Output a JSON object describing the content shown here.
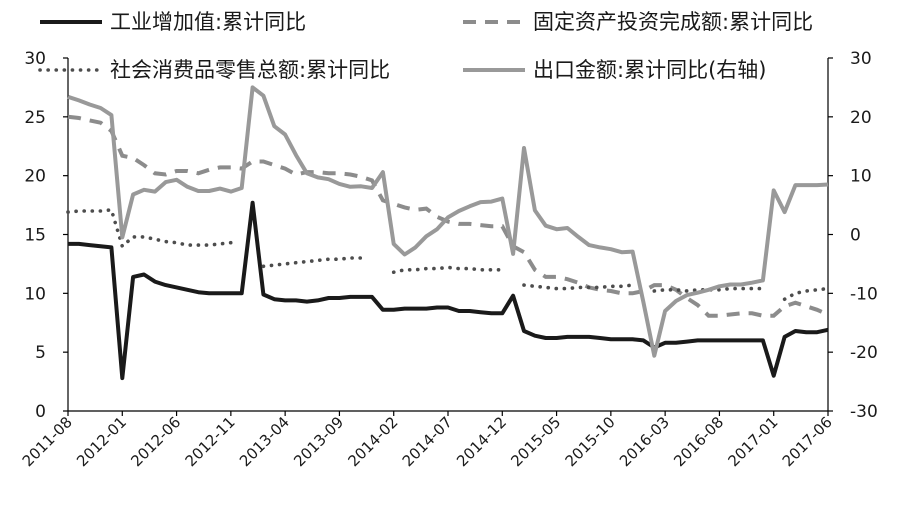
{
  "chart_data": {
    "type": "line",
    "title": "",
    "xlabel": "",
    "ylabel": "",
    "y_left": {
      "range": [
        0,
        30
      ],
      "ticks": [
        "0",
        "5",
        "10",
        "15",
        "20",
        "25",
        "30"
      ]
    },
    "y_right": {
      "range": [
        -30,
        30
      ],
      "ticks": [
        "-30",
        "-20",
        "-10",
        "0",
        "10",
        "20",
        "30"
      ]
    },
    "x_tick_labels": [
      "2011-08",
      "2012-01",
      "2012-06",
      "2012-11",
      "2013-04",
      "2013-09",
      "2014-02",
      "2014-07",
      "2014-12",
      "2015-05",
      "2015-10",
      "2016-03",
      "2016-08",
      "2017-01",
      "2017-06"
    ],
    "x_start": "2011-08",
    "x_end": "2017-06",
    "grid": false,
    "legend_position": "top",
    "series": [
      {
        "name": "工业增加值:累计同比",
        "axis": "left",
        "color": "#1a1a1a",
        "style": "solid",
        "points": [
          [
            "2011-08",
            14.2
          ],
          [
            "2011-09",
            14.2
          ],
          [
            "2011-10",
            14.1
          ],
          [
            "2011-11",
            14.0
          ],
          [
            "2011-12",
            13.9
          ],
          [
            "2012-01",
            2.8
          ],
          [
            "2012-02",
            11.4
          ],
          [
            "2012-03",
            11.6
          ],
          [
            "2012-04",
            11.0
          ],
          [
            "2012-05",
            10.7
          ],
          [
            "2012-06",
            10.5
          ],
          [
            "2012-07",
            10.3
          ],
          [
            "2012-08",
            10.1
          ],
          [
            "2012-09",
            10.0
          ],
          [
            "2012-10",
            10.0
          ],
          [
            "2012-11",
            10.0
          ],
          [
            "2012-12",
            10.0
          ],
          [
            "2013-01",
            17.7
          ],
          [
            "2013-02",
            9.9
          ],
          [
            "2013-03",
            9.5
          ],
          [
            "2013-04",
            9.4
          ],
          [
            "2013-05",
            9.4
          ],
          [
            "2013-06",
            9.3
          ],
          [
            "2013-07",
            9.4
          ],
          [
            "2013-08",
            9.6
          ],
          [
            "2013-09",
            9.6
          ],
          [
            "2013-10",
            9.7
          ],
          [
            "2013-11",
            9.7
          ],
          [
            "2013-12",
            9.7
          ],
          [
            "2014-01",
            8.6
          ],
          [
            "2014-02",
            8.6
          ],
          [
            "2014-03",
            8.7
          ],
          [
            "2014-04",
            8.7
          ],
          [
            "2014-05",
            8.7
          ],
          [
            "2014-06",
            8.8
          ],
          [
            "2014-07",
            8.8
          ],
          [
            "2014-08",
            8.5
          ],
          [
            "2014-09",
            8.5
          ],
          [
            "2014-10",
            8.4
          ],
          [
            "2014-11",
            8.3
          ],
          [
            "2014-12",
            8.3
          ],
          [
            "2015-01",
            9.8
          ],
          [
            "2015-02",
            6.8
          ],
          [
            "2015-03",
            6.4
          ],
          [
            "2015-04",
            6.2
          ],
          [
            "2015-05",
            6.2
          ],
          [
            "2015-06",
            6.3
          ],
          [
            "2015-07",
            6.3
          ],
          [
            "2015-08",
            6.3
          ],
          [
            "2015-09",
            6.2
          ],
          [
            "2015-10",
            6.1
          ],
          [
            "2015-11",
            6.1
          ],
          [
            "2015-12",
            6.1
          ],
          [
            "2016-01",
            6.0
          ],
          [
            "2016-02",
            5.4
          ],
          [
            "2016-03",
            5.8
          ],
          [
            "2016-04",
            5.8
          ],
          [
            "2016-05",
            5.9
          ],
          [
            "2016-06",
            6.0
          ],
          [
            "2016-07",
            6.0
          ],
          [
            "2016-08",
            6.0
          ],
          [
            "2016-09",
            6.0
          ],
          [
            "2016-10",
            6.0
          ],
          [
            "2016-11",
            6.0
          ],
          [
            "2016-12",
            6.0
          ],
          [
            "2017-01",
            3.0
          ],
          [
            "2017-02",
            6.3
          ],
          [
            "2017-03",
            6.8
          ],
          [
            "2017-04",
            6.7
          ],
          [
            "2017-05",
            6.7
          ],
          [
            "2017-06",
            6.9
          ]
        ]
      },
      {
        "name": "固定资产投资完成额:累计同比",
        "axis": "left",
        "color": "#8c8c8c",
        "style": "dashed",
        "points": [
          [
            "2011-08",
            25.0
          ],
          [
            "2011-09",
            24.9
          ],
          [
            "2011-10",
            24.7
          ],
          [
            "2011-11",
            24.5
          ],
          [
            "2011-12",
            23.8
          ],
          [
            "2012-01",
            21.7
          ],
          [
            "2012-02",
            21.5
          ],
          [
            "2012-03",
            20.9
          ],
          [
            "2012-04",
            20.2
          ],
          [
            "2012-05",
            20.1
          ],
          [
            "2012-06",
            20.4
          ],
          [
            "2012-07",
            20.4
          ],
          [
            "2012-08",
            20.2
          ],
          [
            "2012-09",
            20.5
          ],
          [
            "2012-10",
            20.7
          ],
          [
            "2012-11",
            20.7
          ],
          [
            "2012-12",
            20.6
          ],
          [
            "2013-01",
            21.2
          ],
          [
            "2013-02",
            21.2
          ],
          [
            "2013-03",
            20.9
          ],
          [
            "2013-04",
            20.6
          ],
          [
            "2013-05",
            20.1
          ],
          [
            "2013-06",
            20.3
          ],
          [
            "2013-07",
            20.3
          ],
          [
            "2013-08",
            20.2
          ],
          [
            "2013-09",
            20.2
          ],
          [
            "2013-10",
            20.1
          ],
          [
            "2013-11",
            19.9
          ],
          [
            "2013-12",
            19.6
          ],
          [
            "2014-01",
            17.9
          ],
          [
            "2014-02",
            17.6
          ],
          [
            "2014-03",
            17.3
          ],
          [
            "2014-04",
            17.1
          ],
          [
            "2014-05",
            17.2
          ],
          [
            "2014-06",
            16.5
          ],
          [
            "2014-07",
            16.1
          ],
          [
            "2014-08",
            15.9
          ],
          [
            "2014-09",
            15.9
          ],
          [
            "2014-10",
            15.8
          ],
          [
            "2014-11",
            15.7
          ],
          [
            "2014-12",
            15.7
          ],
          [
            "2015-01",
            14.0
          ],
          [
            "2015-02",
            13.5
          ],
          [
            "2015-03",
            12.0
          ],
          [
            "2015-04",
            11.4
          ],
          [
            "2015-05",
            11.4
          ],
          [
            "2015-06",
            11.2
          ],
          [
            "2015-07",
            10.9
          ],
          [
            "2015-08",
            10.5
          ],
          [
            "2015-09",
            10.3
          ],
          [
            "2015-10",
            10.2
          ],
          [
            "2015-11",
            10.0
          ],
          [
            "2015-12",
            10.0
          ],
          [
            "2016-01",
            10.2
          ],
          [
            "2016-02",
            10.7
          ],
          [
            "2016-03",
            10.7
          ],
          [
            "2016-04",
            10.3
          ],
          [
            "2016-05",
            9.6
          ],
          [
            "2016-06",
            9.0
          ],
          [
            "2016-07",
            8.1
          ],
          [
            "2016-08",
            8.1
          ],
          [
            "2016-09",
            8.2
          ],
          [
            "2016-10",
            8.3
          ],
          [
            "2016-11",
            8.3
          ],
          [
            "2016-12",
            8.1
          ],
          [
            "2017-01",
            8.1
          ],
          [
            "2017-02",
            8.9
          ],
          [
            "2017-03",
            9.2
          ],
          [
            "2017-04",
            8.9
          ],
          [
            "2017-05",
            8.6
          ],
          [
            "2017-06",
            8.2
          ]
        ]
      },
      {
        "name": "社会消费品零售总额:累计同比",
        "axis": "left",
        "color": "#4d4d4d",
        "style": "dotted",
        "points": [
          [
            "2011-08",
            16.9
          ],
          [
            "2011-09",
            17.0
          ],
          [
            "2011-10",
            17.0
          ],
          [
            "2011-11",
            17.0
          ],
          [
            "2011-12",
            17.1
          ],
          [
            "2012-01",
            14.0
          ],
          [
            "2012-02",
            14.8
          ],
          [
            "2012-03",
            14.8
          ],
          [
            "2012-04",
            14.6
          ],
          [
            "2012-05",
            14.4
          ],
          [
            "2012-06",
            14.3
          ],
          [
            "2012-07",
            14.1
          ],
          [
            "2012-08",
            14.1
          ],
          [
            "2012-09",
            14.1
          ],
          [
            "2012-10",
            14.2
          ],
          [
            "2012-11",
            14.3
          ],
          [
            "2012-12",
            null
          ],
          [
            "2013-01",
            null
          ],
          [
            "2013-02",
            12.3
          ],
          [
            "2013-03",
            12.4
          ],
          [
            "2013-04",
            12.5
          ],
          [
            "2013-05",
            12.6
          ],
          [
            "2013-06",
            12.7
          ],
          [
            "2013-07",
            12.8
          ],
          [
            "2013-08",
            12.9
          ],
          [
            "2013-09",
            12.9
          ],
          [
            "2013-10",
            13.0
          ],
          [
            "2013-11",
            13.0
          ],
          [
            "2013-12",
            null
          ],
          [
            "2014-01",
            null
          ],
          [
            "2014-02",
            11.8
          ],
          [
            "2014-03",
            12.0
          ],
          [
            "2014-04",
            12.0
          ],
          [
            "2014-05",
            12.1
          ],
          [
            "2014-06",
            12.1
          ],
          [
            "2014-07",
            12.2
          ],
          [
            "2014-08",
            12.1
          ],
          [
            "2014-09",
            12.1
          ],
          [
            "2014-10",
            12.0
          ],
          [
            "2014-11",
            12.0
          ],
          [
            "2014-12",
            12.0
          ],
          [
            "2015-01",
            null
          ],
          [
            "2015-02",
            10.7
          ],
          [
            "2015-03",
            10.6
          ],
          [
            "2015-04",
            10.5
          ],
          [
            "2015-05",
            10.4
          ],
          [
            "2015-06",
            10.4
          ],
          [
            "2015-07",
            10.5
          ],
          [
            "2015-08",
            10.5
          ],
          [
            "2015-09",
            10.5
          ],
          [
            "2015-10",
            10.6
          ],
          [
            "2015-11",
            10.6
          ],
          [
            "2015-12",
            10.7
          ],
          [
            "2016-01",
            null
          ],
          [
            "2016-02",
            10.2
          ],
          [
            "2016-03",
            10.3
          ],
          [
            "2016-04",
            10.3
          ],
          [
            "2016-05",
            10.2
          ],
          [
            "2016-06",
            10.3
          ],
          [
            "2016-07",
            10.3
          ],
          [
            "2016-08",
            10.3
          ],
          [
            "2016-09",
            10.4
          ],
          [
            "2016-10",
            10.4
          ],
          [
            "2016-11",
            10.4
          ],
          [
            "2016-12",
            10.4
          ],
          [
            "2017-01",
            null
          ],
          [
            "2017-02",
            9.5
          ],
          [
            "2017-03",
            10.0
          ],
          [
            "2017-04",
            10.2
          ],
          [
            "2017-05",
            10.3
          ],
          [
            "2017-06",
            10.4
          ]
        ]
      },
      {
        "name": "出口金额:累计同比(右轴)",
        "axis": "right",
        "color": "#999999",
        "style": "solid",
        "points": [
          [
            "2011-08",
            23.4
          ],
          [
            "2011-09",
            22.8
          ],
          [
            "2011-10",
            22.1
          ],
          [
            "2011-11",
            21.5
          ],
          [
            "2011-12",
            20.3
          ],
          [
            "2012-01",
            -0.5
          ],
          [
            "2012-02",
            6.8
          ],
          [
            "2012-03",
            7.6
          ],
          [
            "2012-04",
            7.3
          ],
          [
            "2012-05",
            8.9
          ],
          [
            "2012-06",
            9.3
          ],
          [
            "2012-07",
            8.1
          ],
          [
            "2012-08",
            7.4
          ],
          [
            "2012-09",
            7.4
          ],
          [
            "2012-10",
            7.8
          ],
          [
            "2012-11",
            7.3
          ],
          [
            "2012-12",
            7.9
          ],
          [
            "2013-01",
            25.0
          ],
          [
            "2013-02",
            23.6
          ],
          [
            "2013-03",
            18.4
          ],
          [
            "2013-04",
            17.0
          ],
          [
            "2013-05",
            13.5
          ],
          [
            "2013-06",
            10.4
          ],
          [
            "2013-07",
            9.7
          ],
          [
            "2013-08",
            9.4
          ],
          [
            "2013-09",
            8.6
          ],
          [
            "2013-10",
            8.1
          ],
          [
            "2013-11",
            8.2
          ],
          [
            "2013-12",
            7.9
          ],
          [
            "2014-01",
            10.6
          ],
          [
            "2014-02",
            -1.6
          ],
          [
            "2014-03",
            -3.4
          ],
          [
            "2014-04",
            -2.2
          ],
          [
            "2014-05",
            -0.3
          ],
          [
            "2014-06",
            0.9
          ],
          [
            "2014-07",
            2.9
          ],
          [
            "2014-08",
            4.0
          ],
          [
            "2014-09",
            4.8
          ],
          [
            "2014-10",
            5.5
          ],
          [
            "2014-11",
            5.6
          ],
          [
            "2014-12",
            6.1
          ],
          [
            "2015-01",
            -3.3
          ],
          [
            "2015-02",
            14.7
          ],
          [
            "2015-03",
            4.1
          ],
          [
            "2015-04",
            1.5
          ],
          [
            "2015-05",
            0.9
          ],
          [
            "2015-06",
            1.1
          ],
          [
            "2015-07",
            -0.4
          ],
          [
            "2015-08",
            -1.8
          ],
          [
            "2015-09",
            -2.2
          ],
          [
            "2015-10",
            -2.5
          ],
          [
            "2015-11",
            -3.0
          ],
          [
            "2015-12",
            -2.9
          ],
          [
            "2016-01",
            -11.5
          ],
          [
            "2016-02",
            -20.6
          ],
          [
            "2016-03",
            -13.0
          ],
          [
            "2016-04",
            -11.3
          ],
          [
            "2016-05",
            -10.3
          ],
          [
            "2016-06",
            -9.9
          ],
          [
            "2016-07",
            -9.4
          ],
          [
            "2016-08",
            -8.8
          ],
          [
            "2016-09",
            -8.5
          ],
          [
            "2016-10",
            -8.5
          ],
          [
            "2016-11",
            -8.2
          ],
          [
            "2016-12",
            -7.8
          ],
          [
            "2017-01",
            7.5
          ],
          [
            "2017-02",
            3.8
          ],
          [
            "2017-03",
            8.4
          ],
          [
            "2017-04",
            8.4
          ],
          [
            "2017-05",
            8.4
          ],
          [
            "2017-06",
            8.5
          ]
        ]
      }
    ]
  }
}
